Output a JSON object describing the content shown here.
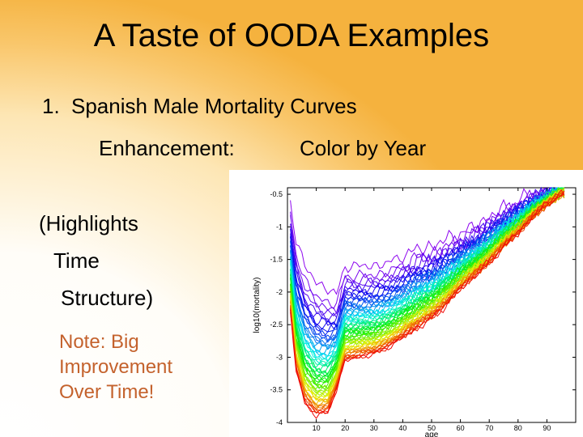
{
  "slide": {
    "title": "A Taste of OODA Examples",
    "item_number": "1.",
    "item_text": "Spanish Male Mortality Curves",
    "enhancement_label": "Enhancement:",
    "enhancement_value": "Color by Year",
    "highlights": [
      "(Highlights",
      "Time",
      "Structure)"
    ],
    "note_lines": [
      "Note: Big",
      "Improvement",
      "Over Time!"
    ],
    "colors": {
      "note": "#c4622d",
      "background_accent": "#f5b23e"
    }
  },
  "chart_data": {
    "type": "line",
    "xlabel": "age",
    "ylabel": "log10(mortality)",
    "xlim": [
      0,
      100
    ],
    "ylim": [
      -4,
      -0.4
    ],
    "x_ticks": [
      10,
      20,
      30,
      40,
      50,
      60,
      70,
      80,
      90
    ],
    "x_tick_labels": [
      "10",
      "20",
      "30",
      "40",
      "50",
      "60",
      "70",
      "80",
      "90"
    ],
    "y_ticks": [
      -0.5,
      -1,
      -1.5,
      -2,
      -2.5,
      -3,
      -3.5,
      -4
    ],
    "y_tick_labels": [
      "-0.5",
      "-1",
      "-1.5",
      "-2",
      "-2.5",
      "-3",
      "-3.5",
      "-4"
    ],
    "color_encoding": "year (purple = earliest, red = latest)",
    "curve_count": 60,
    "reference_curves": {
      "earliest": {
        "x": [
          1,
          3,
          6,
          10,
          14,
          17,
          20,
          25,
          30,
          35,
          40,
          45,
          50,
          55,
          60,
          65,
          70,
          75,
          80,
          85,
          90,
          95
        ],
        "y": [
          -0.6,
          -1.2,
          -1.6,
          -1.85,
          -1.95,
          -2.05,
          -1.6,
          -1.6,
          -1.6,
          -1.55,
          -1.45,
          -1.35,
          -1.3,
          -1.2,
          -1.1,
          -1.0,
          -0.85,
          -0.72,
          -0.6,
          -0.5,
          -0.45,
          -0.35
        ]
      },
      "latest": {
        "x": [
          1,
          3,
          6,
          10,
          14,
          17,
          20,
          25,
          30,
          35,
          40,
          45,
          50,
          55,
          60,
          65,
          70,
          75,
          80,
          85,
          90,
          95
        ],
        "y": [
          -2.3,
          -3.2,
          -3.7,
          -3.9,
          -3.85,
          -3.5,
          -3.05,
          -3.0,
          -2.95,
          -2.85,
          -2.7,
          -2.55,
          -2.4,
          -2.2,
          -1.95,
          -1.75,
          -1.55,
          -1.3,
          -1.1,
          -0.85,
          -0.65,
          -0.5
        ]
      }
    }
  }
}
